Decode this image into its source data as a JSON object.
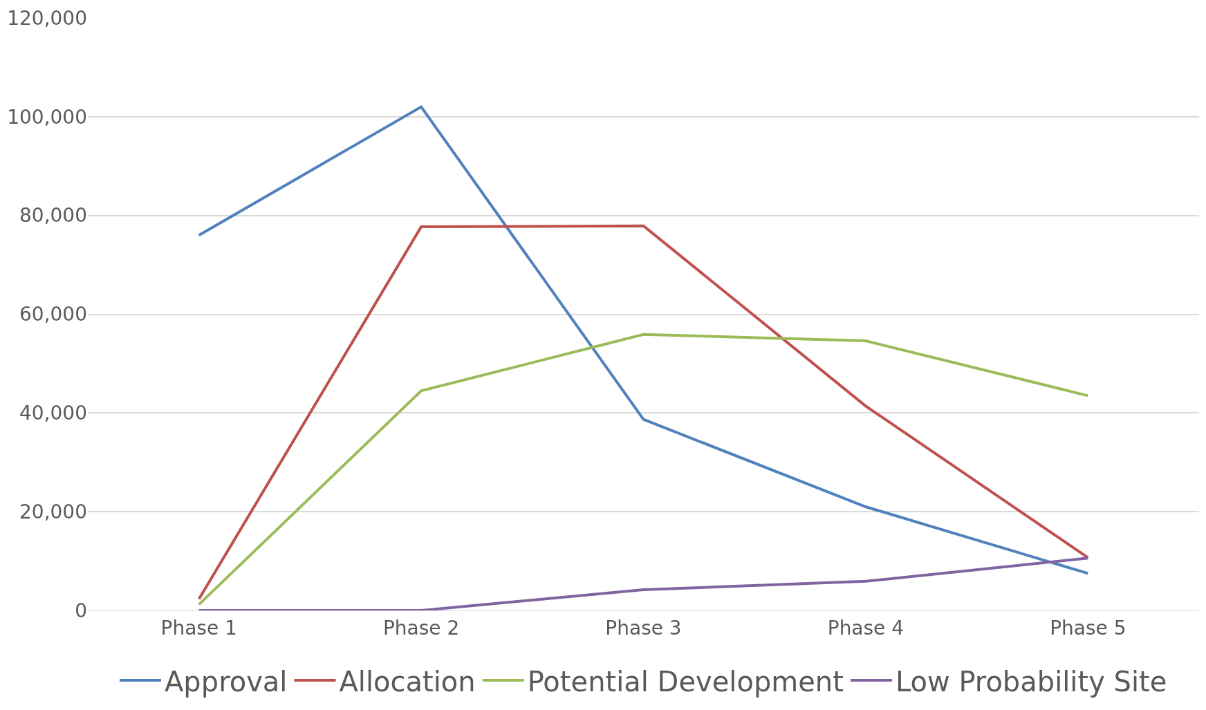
{
  "chart_data": {
    "type": "line",
    "categories": [
      "Phase 1",
      "Phase 2",
      "Phase 3",
      "Phase 4",
      "Phase 5"
    ],
    "series": [
      {
        "name": "Approval",
        "color": "#4f81bd",
        "values": [
          76000,
          102000,
          38700,
          21000,
          7500
        ]
      },
      {
        "name": "Allocation",
        "color": "#c0504d",
        "values": [
          2300,
          77700,
          77900,
          41400,
          10700
        ]
      },
      {
        "name": "Potential Development",
        "color": "#9bbb59",
        "values": [
          1200,
          44500,
          55900,
          54600,
          43500
        ]
      },
      {
        "name": "Low Probability Site",
        "color": "#8064a2",
        "values": [
          0,
          0,
          4200,
          5900,
          10600
        ]
      }
    ],
    "ylim": [
      0,
      120000
    ],
    "yticks": [
      {
        "value": 0,
        "label": "0"
      },
      {
        "value": 20000,
        "label": "20,000"
      },
      {
        "value": 40000,
        "label": "40,000"
      },
      {
        "value": 60000,
        "label": "60,000"
      },
      {
        "value": 80000,
        "label": "80,000"
      },
      {
        "value": 100000,
        "label": "100,000"
      },
      {
        "value": 120000,
        "label": "120,000"
      }
    ],
    "grid": "y",
    "legend": "bottom",
    "marker": "none",
    "line_style": "solid"
  }
}
